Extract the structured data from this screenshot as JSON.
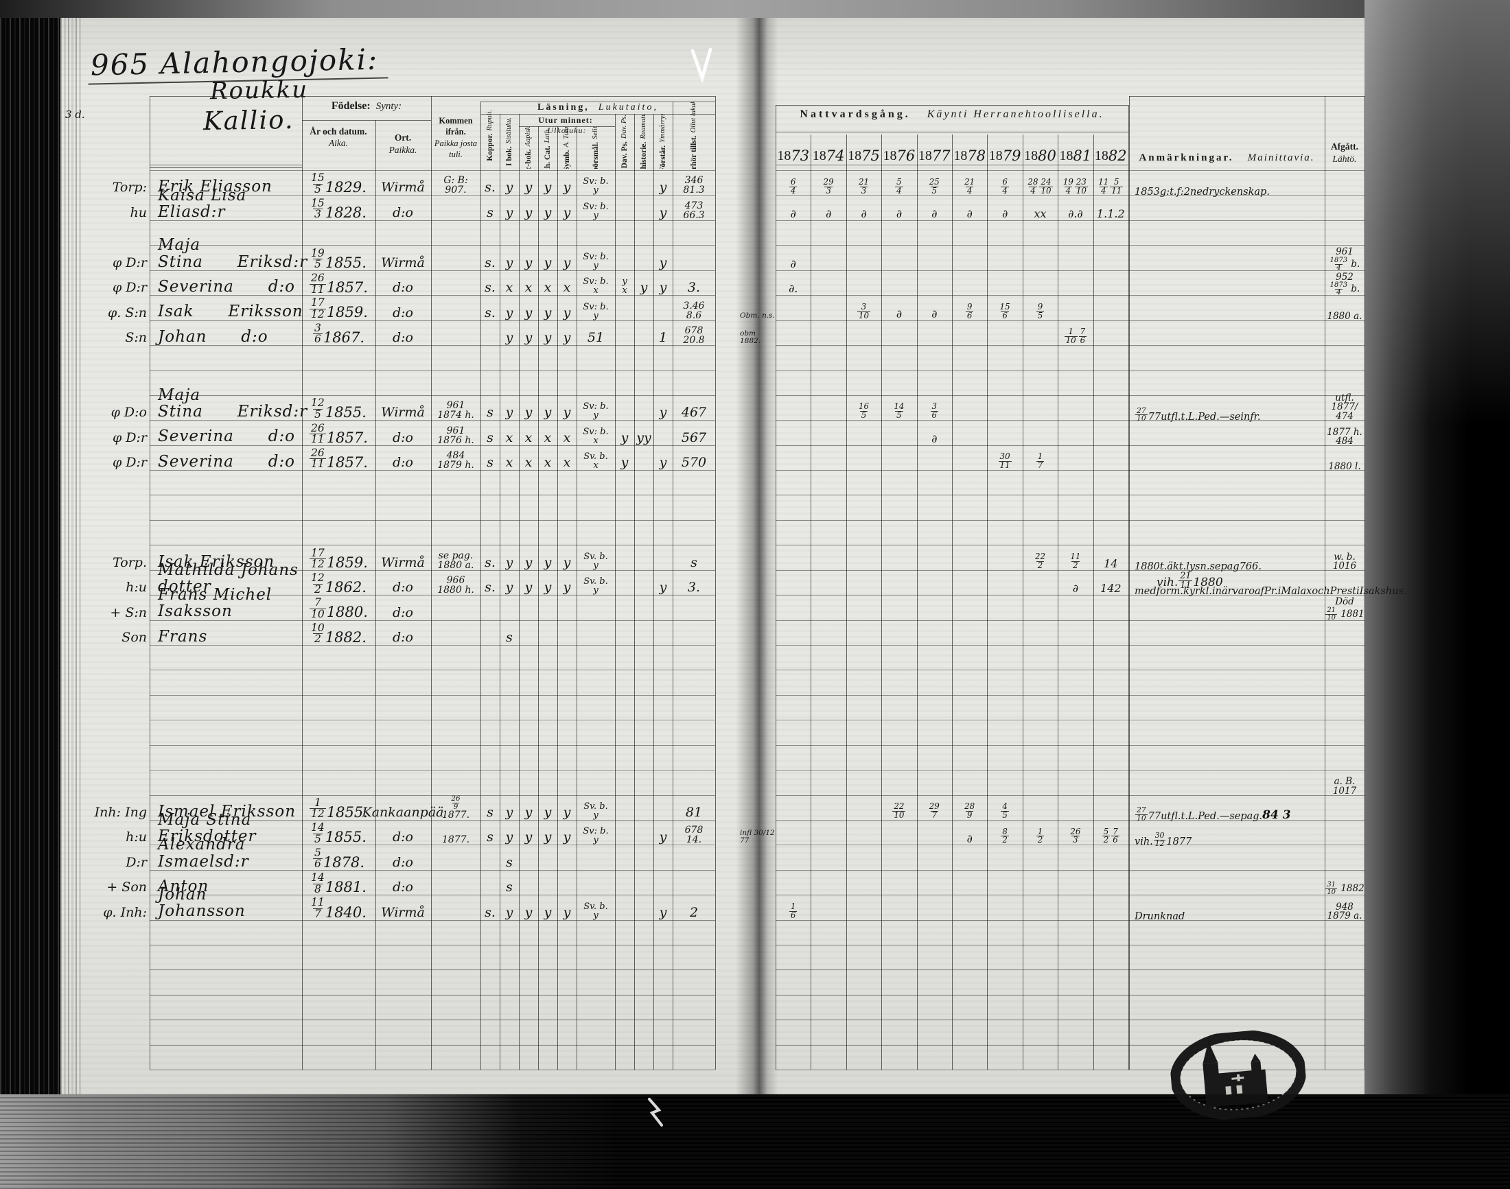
{
  "document": {
    "title": "965 Alahongojoki:",
    "village_lines": [
      "Roukku",
      "Kallio."
    ],
    "margin_note_top": "3 d.",
    "headers_left": {
      "fodelse_sv": "Födelse:",
      "fodelse_fi": "Synty:",
      "ar_sv": "År och datum.",
      "ar_fi": "Aika.",
      "ort_sv": "Ort.",
      "ort_fi": "Paikka.",
      "kommen_sv": "Kommen ifrån.",
      "kommen_fi": "Paikka josta tuli.",
      "lasning_sv": "Läsning,",
      "lasning_fi": "Lukutaito,",
      "utur_sv": "Utur minnet:",
      "utur_fi": "Ulkoluku:",
      "vertical_cols": [
        {
          "sv": "Koppor.",
          "fi": "Rupuli."
        },
        {
          "sv": "I bok.",
          "fi": "Sisäluku."
        },
        {
          "sv": "Abc-bok.",
          "fi": "Aapiskirja."
        },
        {
          "sv": "Luth. Cat.",
          "fi": "Luth. Kat."
        },
        {
          "sv": "A. Symb.",
          "fi": "A. Tunnust."
        },
        {
          "sv": "Spörsmål.",
          "fi": "Selitys."
        },
        {
          "sv": "Dav. Ps.",
          "fi": "Dav. Ps."
        },
        {
          "sv": "Bibl. historie.",
          "fi": "Raamatun hist."
        },
        {
          "sv": "Förstår.",
          "fi": "Ymmärrys."
        },
        {
          "sv": "Vid läsförhör tillst.",
          "fi": "Ollut lukukinkereillä."
        }
      ]
    },
    "headers_right": {
      "nattvard_sv": "Nattvardsgång.",
      "nattvard_fi": "Käynti Herranehtoollisella.",
      "years": [
        "1873",
        "1874",
        "1875",
        "1876",
        "1877",
        "1878",
        "1879",
        "1880",
        "1881",
        "1882"
      ],
      "anm_sv": "Anmärkningar.",
      "anm_fi": "Mainittavia.",
      "afg_sv": "Afgått.",
      "afg_fi": "Lähtö."
    },
    "rows": [
      {
        "slot": 0,
        "margin": "Torp:",
        "name": "Erik Eliasson",
        "date": "15/5 1829.",
        "place": "Wirmå",
        "from": "G: B:|907.",
        "reading": [
          "s.",
          "y",
          "y",
          "y",
          "y",
          "Sv: b.|y",
          "",
          "",
          "y",
          "346|81.3"
        ],
        "communion": [
          "6/4",
          "29/3",
          "21/3",
          "5/4",
          "25/5",
          "21/4",
          "6/4",
          "28/4 24/10",
          "19/4 23/10",
          "11/4 5/11"
        ],
        "anm": "1853 g:t. f: 2ne dryckenskap."
      },
      {
        "slot": 1,
        "margin": "hu",
        "name": "Kaisa Lisa Eliasd:r",
        "date": "15/3 1828.",
        "place": "d:o",
        "reading": [
          "s",
          "y",
          "y",
          "y",
          "y",
          "Sv: b.|y",
          "",
          "",
          "y",
          "473|66.3"
        ],
        "communion": [
          "∂",
          "∂",
          "∂",
          "∂",
          "∂",
          "∂",
          "∂",
          "xx",
          "∂. ∂",
          "1. 1. 2"
        ]
      },
      {
        "slot": 3,
        "margin": "φ D:r",
        "name": "Maja Stina  Eriksd:r",
        "date": "19/5 1855.",
        "place": "Wirmå",
        "reading": [
          "s.",
          "y",
          "y",
          "y",
          "y",
          "Sv: b.|y",
          "",
          "",
          "y",
          ""
        ],
        "communion": [
          "∂",
          "",
          "",
          "",
          "",
          "",
          "",
          "",
          "",
          ""
        ],
        "afg": "961|1873/4 b."
      },
      {
        "slot": 4,
        "margin": "φ D:r",
        "name": "Severina  d:o",
        "date": "26/11 1857.",
        "place": "d:o",
        "reading": [
          "s.",
          "x",
          "x",
          "x",
          "x",
          "Sv: b.|x",
          "y|x",
          "y",
          "y",
          "3."
        ],
        "communion": [
          "∂.",
          "",
          "",
          "",
          "",
          "",
          "",
          "",
          "",
          ""
        ],
        "afg": "952|1873/4 b."
      },
      {
        "slot": 5,
        "margin": "φ. S:n",
        "name": "Isak  Eriksson",
        "date": "17/12 1859.",
        "place": "d:o",
        "reading": [
          "s.",
          "y",
          "y",
          "y",
          "y",
          "Sv: b.|y",
          "",
          "",
          "",
          "3.46|8.6"
        ],
        "communion": [
          "",
          "",
          "3/10",
          "∂",
          "∂",
          "9/6",
          "15/6",
          "9/5",
          "",
          ""
        ],
        "gutter": "Obm. n.s.",
        "afg": "1880 a."
      },
      {
        "slot": 6,
        "margin": "S:n",
        "name": "Johan  d:o",
        "date": "3/6 1867.",
        "place": "d:o",
        "reading": [
          "",
          "y",
          "y",
          "y",
          "y",
          "51",
          "",
          "",
          "1",
          "678|20.8"
        ],
        "communion": [
          "",
          "",
          "",
          "",
          "",
          "",
          "",
          "",
          "1/10 7/6",
          ""
        ],
        "gutter": "obm 1882."
      },
      {
        "slot": 9,
        "margin": "φ D:o",
        "name": "Maja Stina  Eriksd:r",
        "date": "12/5 1855.",
        "place": "Wirmå",
        "from": "961|1874 h.",
        "reading": [
          "s",
          "y",
          "y",
          "y",
          "y",
          "Sv: b.|y",
          "",
          "",
          "y",
          "467"
        ],
        "communion": [
          "",
          "",
          "16/5",
          "14/5",
          "3/6",
          "",
          "",
          "",
          "",
          ""
        ],
        "anm": "27/10 77 utfl. t. L. Ped. — se infr.",
        "afg": "utfl.|1877/|474"
      },
      {
        "slot": 10,
        "margin": "φ D:r",
        "name": "Severina  d:o",
        "date": "26/11 1857.",
        "place": "d:o",
        "from": "961|1876 h.",
        "reading": [
          "s",
          "x",
          "x",
          "x",
          "x",
          "Sv: b.|x",
          "y",
          "y y",
          "",
          "567"
        ],
        "communion": [
          "",
          "",
          "",
          "",
          "∂",
          "",
          "",
          "",
          "",
          ""
        ],
        "afg": "1877 h.|484"
      },
      {
        "slot": 11,
        "margin": "φ D:r",
        "name": "Severina  d:o",
        "date": "26/11 1857.",
        "place": "d:o",
        "from": "484|1879 h.",
        "reading": [
          "s",
          "x",
          "x",
          "x",
          "x",
          "Sv. b.|x",
          "y",
          "",
          "y",
          "570"
        ],
        "communion": [
          "",
          "",
          "",
          "",
          "",
          "",
          "30/11",
          "1/7",
          "",
          ""
        ],
        "afg": "1880 l."
      },
      {
        "slot": 15,
        "margin": "Torp.",
        "name": "Isak Eriksson",
        "date": "17/12 1859.",
        "place": "Wirmå",
        "from": "se pag.|1880 a.",
        "reading": [
          "s.",
          "y",
          "y",
          "y",
          "y",
          "Sv. b.|y",
          "",
          "",
          "",
          "s"
        ],
        "communion": [
          "",
          "",
          "",
          "",
          "",
          "",
          "",
          "22/2",
          "11/2",
          "14"
        ],
        "anm": "1880 t. äkt. lysn. se pag 766.",
        "anm2": "vih. 21/11 1880",
        "afg": "w. b.|1016"
      },
      {
        "slot": 16,
        "margin": "h:u",
        "name": "Mathilda Johans dotter",
        "date": "12/2 1862.",
        "place": "d:o",
        "from": "966|1880 h.",
        "reading": [
          "s.",
          "y",
          "y",
          "y",
          "y",
          "Sv. b.|y",
          "",
          "",
          "y",
          "3."
        ],
        "communion": [
          "",
          "",
          "",
          "",
          "",
          "",
          "",
          "",
          "∂",
          "14 2"
        ],
        "anm": "med form. kyrkl. i närvaro af Pr. i Malax och Prest i Isaks hus."
      },
      {
        "slot": 17,
        "margin": "+ S:n",
        "name": "Frans Michel Isaksson",
        "date": "7/10 1880.",
        "place": "d:o",
        "reading": [],
        "communion": [],
        "afg": "Död|21/10 1881"
      },
      {
        "slot": 18,
        "margin": "Son",
        "name": "Frans",
        "date": "10/2 1882.",
        "place": "d:o",
        "reading": [
          "",
          "s",
          "",
          "",
          "",
          "",
          "",
          "",
          "",
          ""
        ],
        "communion": []
      },
      {
        "slot": 24,
        "afg": "a. B.|1017"
      },
      {
        "slot": 25,
        "margin": "Inh: Ing",
        "name": "Ismael Eriksson",
        "date": "1/12 1855.",
        "place": "Kankaanpää",
        "from": "26/9|1877.",
        "reading": [
          "s",
          "y",
          "y",
          "y",
          "y",
          "Sv. b.|y",
          "",
          "",
          "",
          "81"
        ],
        "communion": [
          "",
          "",
          "",
          "22/10",
          "29/7",
          "28/9",
          "4/5",
          "",
          "",
          ""
        ],
        "anm": "27/10 77 utfl. t. L. Ped. — se pag.",
        "anm_red": "84 3"
      },
      {
        "slot": 26,
        "margin": "h:u",
        "name": "Maja Stina Eriksdotter",
        "date": "14/5 1855.",
        "place": "d:o",
        "from": "1877.",
        "reading": [
          "s",
          "y",
          "y",
          "y",
          "y",
          "Sv: b.|y",
          "",
          "",
          "y",
          "678|14."
        ],
        "communion": [
          "",
          "",
          "",
          "",
          "",
          "∂",
          "8/2",
          "1/2",
          "26/3",
          "5/2 7/6"
        ],
        "gutter": "infl 30/12 77",
        "anm": "vih. 30/12 1877"
      },
      {
        "slot": 27,
        "margin": "D:r",
        "name": "Alexandra Ismaelsd:r",
        "date": "5/6 1878.",
        "place": "d:o",
        "reading": [
          "",
          "s",
          "",
          "",
          "",
          "",
          "",
          "",
          "",
          ""
        ],
        "communion": []
      },
      {
        "slot": 28,
        "margin": "+ Son",
        "name": "Anton",
        "date": "14/8 1881.",
        "place": "d:o",
        "reading": [
          "",
          "s",
          "",
          "",
          "",
          "",
          "",
          "",
          "",
          ""
        ],
        "communion": [],
        "afg": "31/10 1882"
      },
      {
        "slot": 29,
        "margin": "φ. Inh:",
        "name": "Johan Johansson",
        "date": "11/7 1840.",
        "place": "Wirmå",
        "reading": [
          "s.",
          "y",
          "y",
          "y",
          "y",
          "Sv. b.|y",
          "",
          "",
          "y",
          "2"
        ],
        "communion": [
          "1/6",
          "",
          "",
          "",
          "",
          "",
          "",
          "",
          "",
          ""
        ],
        "anm": "Drunknad",
        "afg": "948|1879 a."
      }
    ]
  }
}
